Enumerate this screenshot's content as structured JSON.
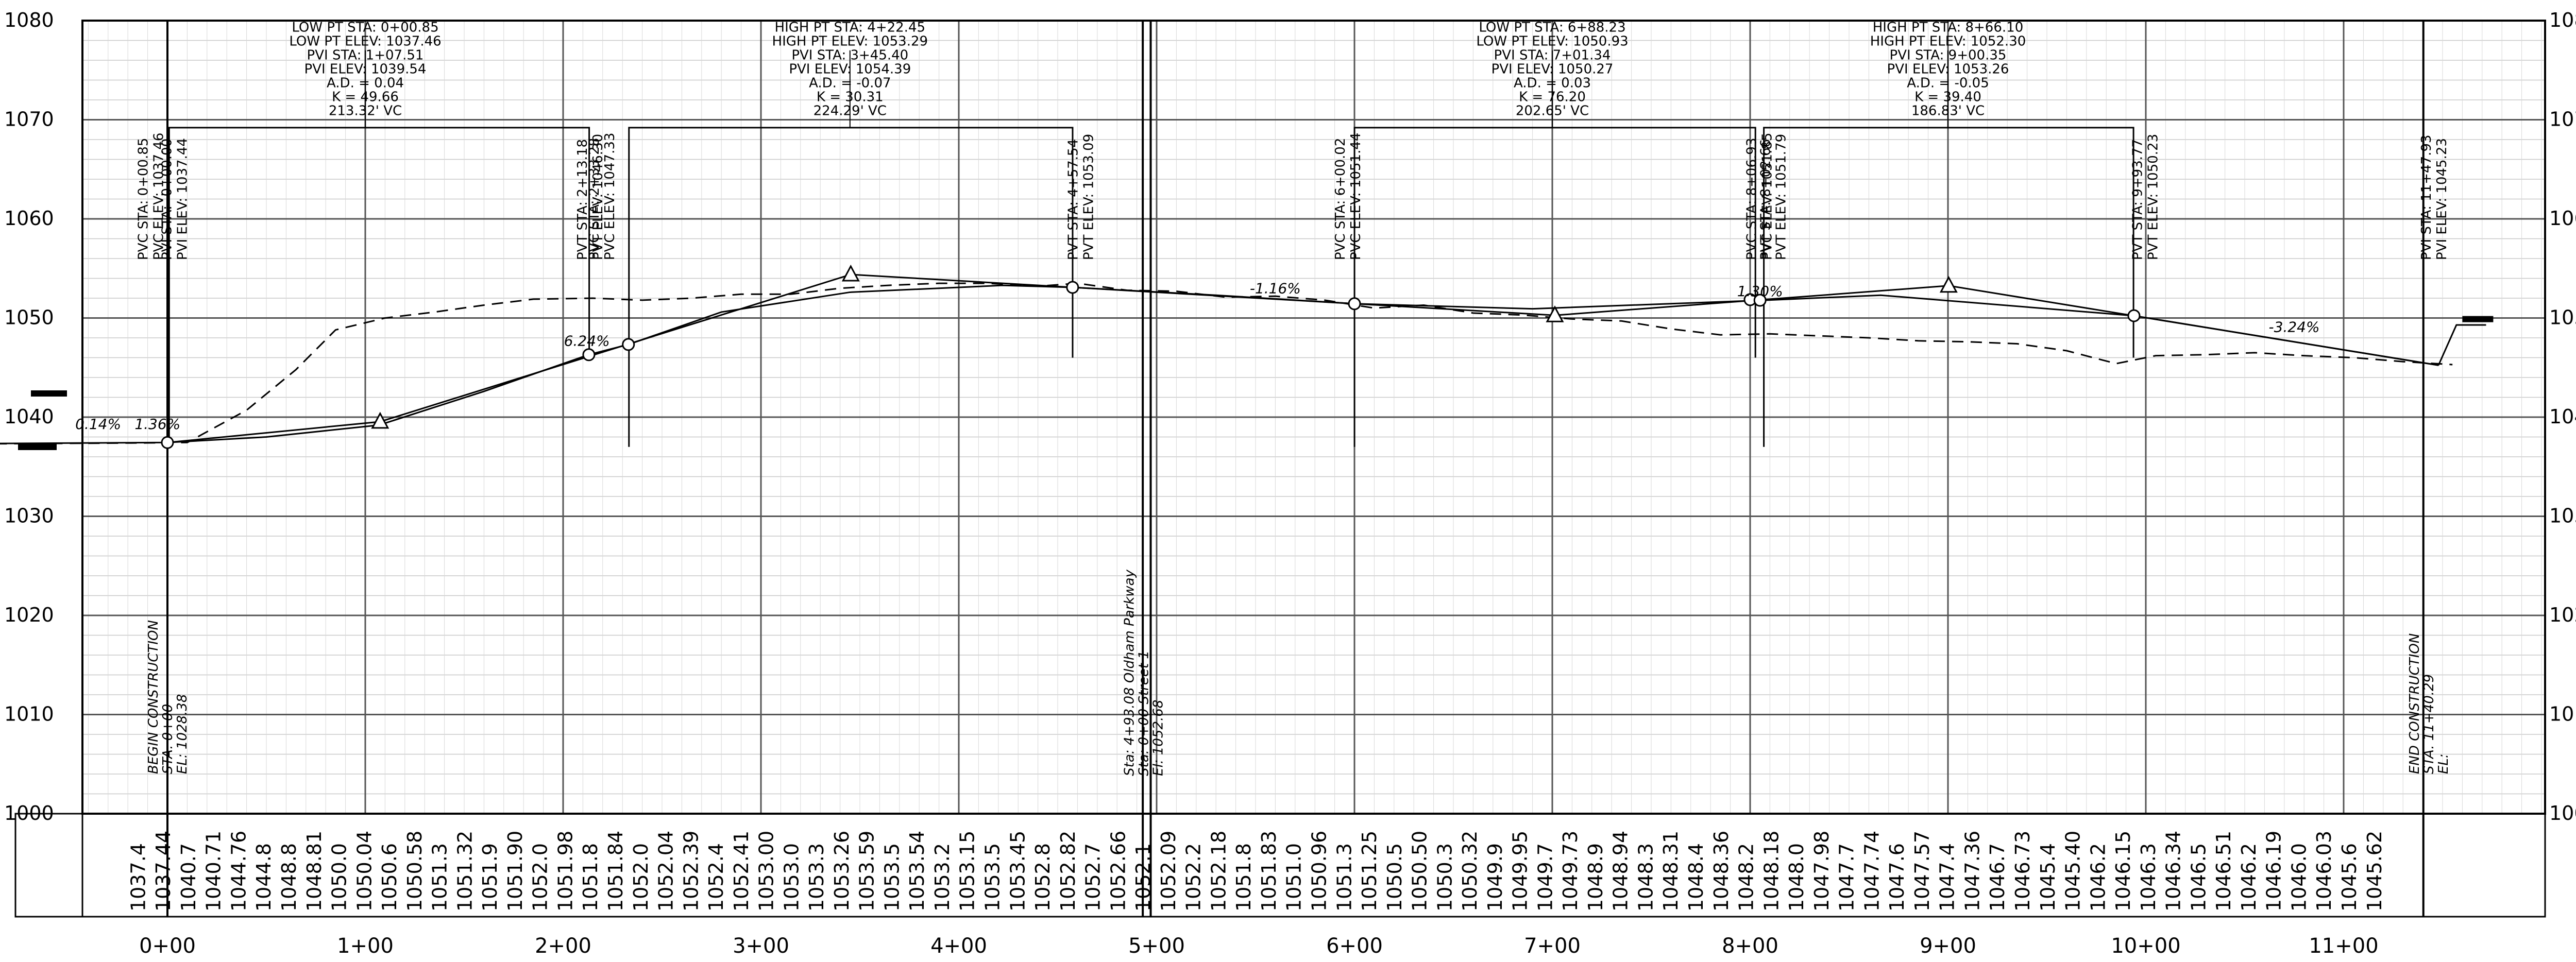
{
  "elevations": [
    "1080",
    "1070",
    "1060",
    "1050",
    "1040",
    "1030",
    "1020",
    "1010",
    "1000"
  ],
  "stations": [
    "0+00",
    "1+00",
    "2+00",
    "3+00",
    "4+00",
    "5+00",
    "6+00",
    "7+00",
    "8+00",
    "9+00",
    "10+00",
    "11+00"
  ],
  "existing_values": [
    "1037.4",
    "1037.44",
    "1040.7",
    "1040.71",
    "1044.76",
    "1044.8",
    "1048.8",
    "1048.81",
    "1050.0",
    "1050.04",
    "1050.6",
    "1050.58",
    "1051.3",
    "1051.32",
    "1051.9",
    "1051.90",
    "1052.0",
    "1051.98",
    "1051.8",
    "1051.84",
    "1052.0",
    "1052.04",
    "1052.39",
    "1052.4",
    "1052.41",
    "1053.00",
    "1053.0",
    "1053.3",
    "1053.26",
    "1053.59",
    "1053.5",
    "1053.54",
    "1053.2",
    "1053.15",
    "1053.5",
    "1053.45",
    "1052.8",
    "1052.82",
    "1052.7",
    "1052.66",
    "1052.1",
    "1052.09",
    "1052.2",
    "1052.18",
    "1051.8",
    "1051.83",
    "1051.0",
    "1050.96",
    "1051.3",
    "1051.25",
    "1050.5",
    "1050.50",
    "1050.3",
    "1050.32",
    "1049.9",
    "1049.95",
    "1049.7",
    "1049.73",
    "1048.9",
    "1048.94",
    "1048.3",
    "1048.31",
    "1048.4",
    "1048.36",
    "1048.2",
    "1048.18",
    "1048.0",
    "1047.98",
    "1047.7",
    "1047.74",
    "1047.6",
    "1047.57",
    "1047.4",
    "1047.36",
    "1046.7",
    "1046.73",
    "1045.4",
    "1045.40",
    "1046.2",
    "1046.15",
    "1046.3",
    "1046.34",
    "1046.5",
    "1046.51",
    "1046.2",
    "1046.19",
    "1046.0",
    "1046.03",
    "1045.6",
    "1045.62"
  ],
  "vertical_curves": [
    {
      "lines": [
        "LOW PT STA: 0+00.85",
        "LOW PT ELEV: 1037.46",
        "PVI STA: 1+07.51",
        "PVI ELEV: 1039.54",
        "A.D. = 0.04",
        "K = 49.66",
        "213.32' VC"
      ]
    },
    {
      "lines": [
        "HIGH PT STA: 4+22.45",
        "HIGH PT ELEV: 1053.29",
        "PVI STA: 3+45.40",
        "PVI ELEV: 1054.39",
        "A.D. = -0.07",
        "K = 30.31",
        "224.29' VC"
      ]
    },
    {
      "lines": [
        "LOW PT STA: 6+88.23",
        "LOW PT ELEV: 1050.93",
        "PVI STA: 7+01.34",
        "PVI ELEV: 1050.27",
        "A.D. = 0.03",
        "K = 76.20",
        "202.65' VC"
      ]
    },
    {
      "lines": [
        "HIGH PT STA: 8+66.10",
        "HIGH PT ELEV: 1052.30",
        "PVI STA: 9+00.35",
        "PVI ELEV: 1053.26",
        "A.D. = -0.05",
        "K = 39.40",
        "186.83' VC"
      ]
    }
  ],
  "point_labels": [
    {
      "a": "PVC STA: 0+00.85",
      "b": "PVC ELEV: 1037.46"
    },
    {
      "a": "PVI STA: -0+00.00",
      "b": "PVI ELEV: 1037.44"
    },
    {
      "a": "PVT STA: 2+13.18",
      "b": "PVT ELEV: 1046.30"
    },
    {
      "a": "PVC STA: 2+33.28",
      "b": "PVC ELEV: 1047.33"
    },
    {
      "a": "PVT STA: 4+57.54",
      "b": "PVT ELEV: 1053.09"
    },
    {
      "a": "PVC STA: 6+00.02",
      "b": "PVC ELEV: 1051.44"
    },
    {
      "a": "PVC STA: 8+06.93",
      "b": "PVC ELEV: 1051.85"
    },
    {
      "a": "PVT STA: 8+02.66",
      "b": "PVT ELEV: 1051.79"
    },
    {
      "a": "PVT STA: 9+93.77",
      "b": "PVT ELEV: 1050.23"
    },
    {
      "a": "PVI STA: 11+47.93",
      "b": "PVI ELEV: 1045.23"
    }
  ],
  "grades": [
    "0.14%",
    "1.36%",
    "6.24%",
    "-1.16%",
    "1.30%",
    "-3.24%"
  ],
  "annotations": {
    "begin": [
      "BEGIN CONSTRUCTION",
      "STA. 0+00",
      "EL: 1028.38"
    ],
    "cross": [
      "Sta: 4+93.08 Oldham Parkway",
      "Sta: 0+00 Street 1",
      "El: 1052.68"
    ],
    "end": [
      "END CONSTRUCTION",
      "STA. 11+40.29",
      "EL:"
    ]
  },
  "colors": {
    "line": "#000000",
    "grid_major": "#555555",
    "grid_minor": "#c8c8c8"
  }
}
